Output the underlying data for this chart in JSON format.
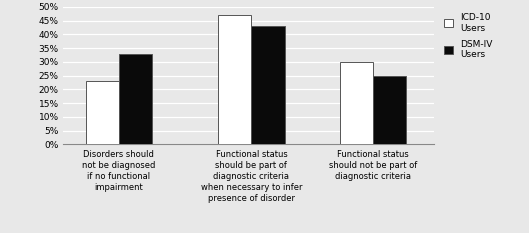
{
  "categories": [
    "Disorders should\nnot be diagnosed\nif no functional\nimpairment",
    "Functional status\nshould be part of\ndiagnostic criteria\nwhen necessary to infer\npresence of disorder",
    "Functional status\nshould not be part of\ndiagnostic criteria"
  ],
  "icd10_values": [
    23,
    47,
    30
  ],
  "dsm4_values": [
    33,
    43,
    25
  ],
  "icd10_color": "#ffffff",
  "dsm4_color": "#0a0a0a",
  "bar_edge_color": "#555555",
  "ylim": [
    0,
    50
  ],
  "yticks": [
    0,
    5,
    10,
    15,
    20,
    25,
    30,
    35,
    40,
    45,
    50
  ],
  "yticklabels": [
    "0%",
    "5%",
    "10%",
    "15%",
    "20%",
    "25%",
    "30%",
    "35%",
    "40%",
    "45%",
    "50%"
  ],
  "legend_labels": [
    "ICD-10\nUsers",
    "DSM-IV\nUsers"
  ],
  "background_color": "#e8e8e8",
  "plot_bg_color": "#e8e8e8",
  "grid_color": "#ffffff",
  "bar_width": 0.3,
  "tick_fontsize": 6.5,
  "label_fontsize": 6.0,
  "legend_fontsize": 6.5,
  "x_positions": [
    0.5,
    1.7,
    2.8
  ]
}
